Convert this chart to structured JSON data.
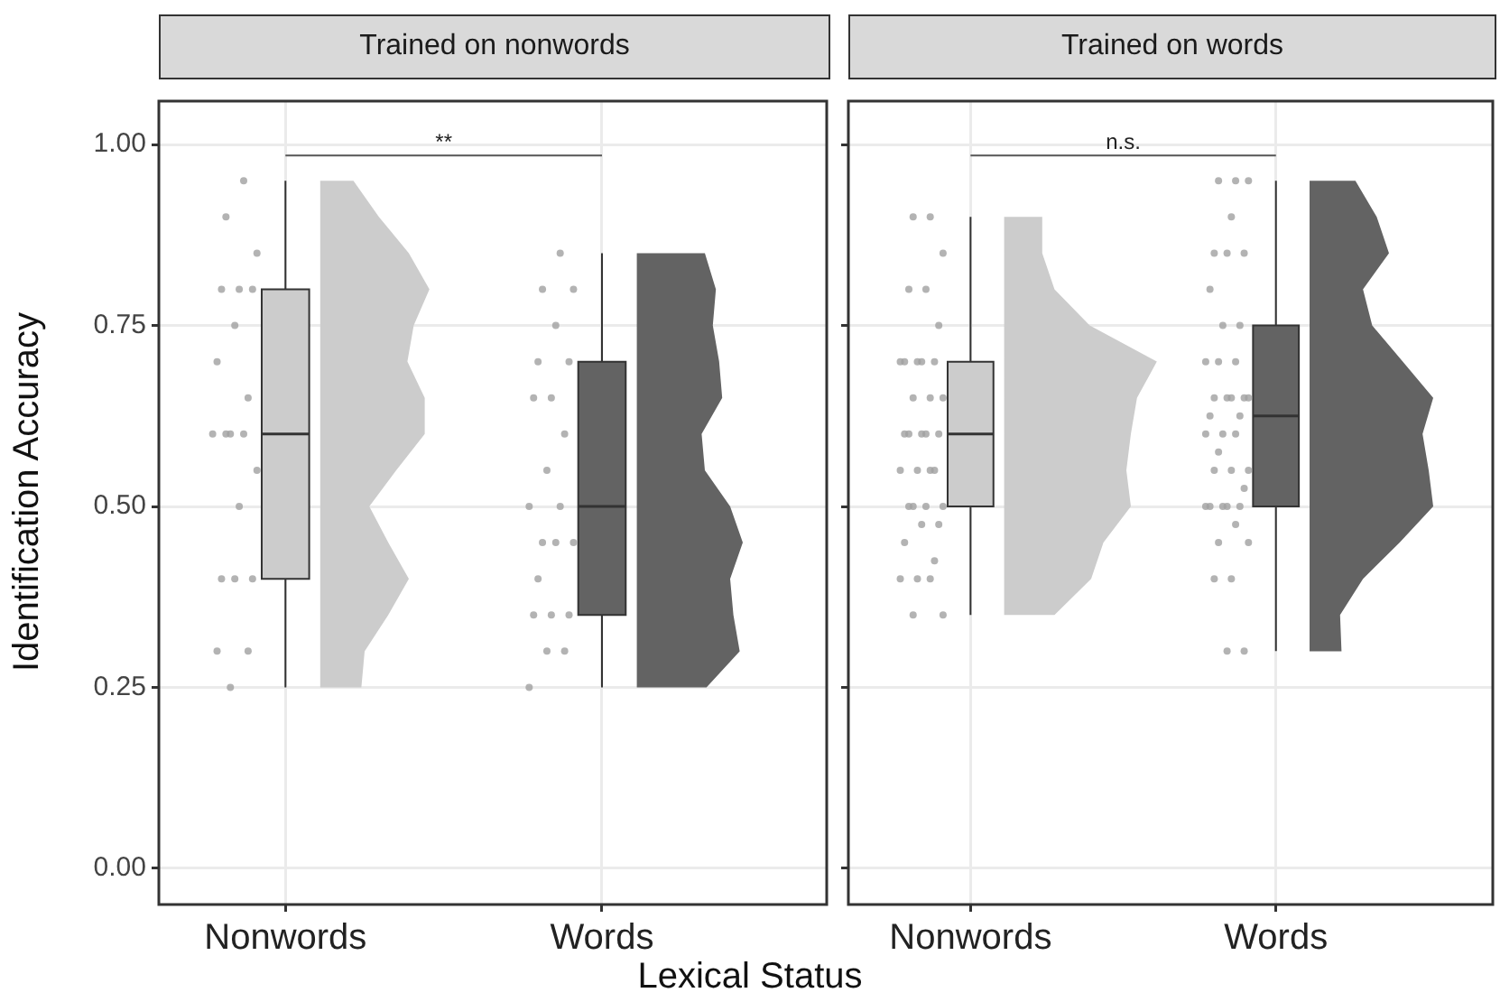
{
  "chart_data": [
    {
      "type": "box",
      "title": "Trained on nonwords",
      "xlabel": "Lexical Status",
      "ylabel": "Identification Accuracy",
      "categories": [
        "Nonwords",
        "Words"
      ],
      "colors": [
        "#cccccc",
        "#636363"
      ],
      "boxes": [
        {
          "low": 0.25,
          "q1": 0.4,
          "median": 0.6,
          "q3": 0.8,
          "high": 0.95
        },
        {
          "low": 0.25,
          "q1": 0.35,
          "median": 0.5,
          "q3": 0.7,
          "high": 0.85
        }
      ],
      "series": [
        {
          "type": "scatter",
          "color": "#a0a0a0",
          "x": [
            "Nonwords",
            "Nonwords",
            "Nonwords",
            "Nonwords",
            "Nonwords",
            "Nonwords",
            "Nonwords",
            "Nonwords",
            "Nonwords",
            "Nonwords",
            "Nonwords",
            "Nonwords",
            "Nonwords",
            "Nonwords",
            "Nonwords",
            "Nonwords",
            "Nonwords",
            "Nonwords",
            "Nonwords",
            "Nonwords",
            "Nonwords",
            "Words",
            "Words",
            "Words",
            "Words",
            "Words",
            "Words",
            "Words",
            "Words",
            "Words",
            "Words",
            "Words",
            "Words",
            "Words",
            "Words",
            "Words",
            "Words",
            "Words",
            "Words",
            "Words",
            "Words",
            "Words",
            "Words"
          ],
          "values": [
            0.95,
            0.9,
            0.85,
            0.8,
            0.8,
            0.8,
            0.75,
            0.7,
            0.65,
            0.6,
            0.6,
            0.6,
            0.6,
            0.55,
            0.5,
            0.4,
            0.4,
            0.4,
            0.3,
            0.3,
            0.25,
            0.85,
            0.8,
            0.8,
            0.75,
            0.7,
            0.7,
            0.65,
            0.65,
            0.6,
            0.55,
            0.5,
            0.5,
            0.45,
            0.45,
            0.45,
            0.4,
            0.35,
            0.35,
            0.35,
            0.3,
            0.3,
            0.25
          ]
        }
      ],
      "annotations": [
        "**"
      ],
      "ylim": [
        -0.05,
        1.06
      ],
      "yticks": [
        {
          "value": 0,
          "label": "0.00"
        },
        {
          "value": 0.25,
          "label": "0.25"
        },
        {
          "value": 0.5,
          "label": "0.50"
        },
        {
          "value": 0.75,
          "label": "0.75"
        },
        {
          "value": 1,
          "label": "1.00"
        }
      ],
      "grid": true
    },
    {
      "type": "box",
      "title": "Trained on words",
      "categories": [
        "Nonwords",
        "Words"
      ],
      "colors": [
        "#cccccc",
        "#636363"
      ],
      "boxes": [
        {
          "low": 0.35,
          "q1": 0.5,
          "median": 0.6,
          "q3": 0.7,
          "high": 0.9
        },
        {
          "low": 0.3,
          "q1": 0.5,
          "median": 0.625,
          "q3": 0.75,
          "high": 0.95
        }
      ],
      "series": [
        {
          "type": "scatter",
          "color": "#a0a0a0",
          "x": [
            "Nonwords",
            "Nonwords",
            "Nonwords",
            "Nonwords",
            "Nonwords",
            "Nonwords",
            "Nonwords",
            "Nonwords",
            "Nonwords",
            "Nonwords",
            "Nonwords",
            "Nonwords",
            "Nonwords",
            "Nonwords",
            "Nonwords",
            "Nonwords",
            "Nonwords",
            "Nonwords",
            "Nonwords",
            "Nonwords",
            "Nonwords",
            "Nonwords",
            "Nonwords",
            "Nonwords",
            "Nonwords",
            "Nonwords",
            "Nonwords",
            "Nonwords",
            "Nonwords",
            "Nonwords",
            "Nonwords",
            "Nonwords",
            "Nonwords",
            "Nonwords",
            "Nonwords",
            "Nonwords",
            "Words",
            "Words",
            "Words",
            "Words",
            "Words",
            "Words",
            "Words",
            "Words",
            "Words",
            "Words",
            "Words",
            "Words",
            "Words",
            "Words",
            "Words",
            "Words",
            "Words",
            "Words",
            "Words",
            "Words",
            "Words",
            "Words",
            "Words",
            "Words",
            "Words",
            "Words",
            "Words",
            "Words",
            "Words",
            "Words",
            "Words",
            "Words",
            "Words",
            "Words",
            "Words",
            "Words",
            "Words",
            "Words",
            "Words",
            "Words"
          ],
          "values": [
            0.9,
            0.9,
            0.85,
            0.8,
            0.8,
            0.75,
            0.7,
            0.7,
            0.7,
            0.7,
            0.7,
            0.65,
            0.65,
            0.65,
            0.6,
            0.6,
            0.6,
            0.6,
            0.6,
            0.55,
            0.55,
            0.55,
            0.55,
            0.5,
            0.5,
            0.5,
            0.5,
            0.475,
            0.475,
            0.45,
            0.425,
            0.4,
            0.4,
            0.4,
            0.35,
            0.35,
            0.95,
            0.95,
            0.95,
            0.9,
            0.85,
            0.85,
            0.85,
            0.8,
            0.75,
            0.75,
            0.7,
            0.7,
            0.7,
            0.65,
            0.65,
            0.65,
            0.65,
            0.65,
            0.625,
            0.625,
            0.6,
            0.6,
            0.6,
            0.575,
            0.55,
            0.55,
            0.55,
            0.525,
            0.5,
            0.5,
            0.5,
            0.5,
            0.5,
            0.475,
            0.45,
            0.45,
            0.4,
            0.4,
            0.3,
            0.3
          ]
        }
      ],
      "annotations": [
        "n.s."
      ],
      "ylim": [
        -0.05,
        1.06
      ],
      "yticks": [
        0,
        0.25,
        0.5,
        0.75,
        1
      ],
      "grid": true,
      "tick_labels": "x"
    }
  ]
}
